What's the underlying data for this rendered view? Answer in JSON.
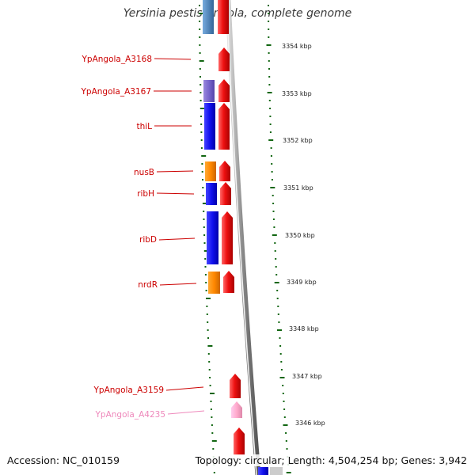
{
  "title": "Yersinia pestis Angola, complete genome",
  "accession": "Accession: NC_010159",
  "summary": "Topology: circular; Length: 4,504,254 bp; Genes: 3,942",
  "colors": {
    "red": "#ee1111",
    "blue": "#1111ee",
    "slate_blue": "#7766cc",
    "steel_blue": "#5588bb",
    "orange": "#ff8800",
    "pink": "#ffaacc",
    "label_red": "#cc0000",
    "label_pink": "#ee88bb",
    "tick_green": "#116611",
    "backbone_gray": "#999999"
  },
  "scale": {
    "unit": "kbp",
    "labels": [
      "3354 kbp",
      "3353 kbp",
      "3352 kbp",
      "3351 kbp",
      "3350 kbp",
      "3349 kbp",
      "3348 kbp",
      "3347 kbp",
      "3346 kbp"
    ]
  },
  "genes": [
    {
      "name": "YpAngola_A3168",
      "label_color": "#cc0000",
      "reverse_color": null
    },
    {
      "name": "YpAngola_A3167",
      "label_color": "#cc0000",
      "reverse_color": "#7766cc"
    },
    {
      "name": "thiL",
      "label_color": "#cc0000",
      "reverse_color": "#1111ee"
    },
    {
      "name": "nusB",
      "label_color": "#cc0000",
      "reverse_color": "#ff8800"
    },
    {
      "name": "ribH",
      "label_color": "#cc0000",
      "reverse_color": "#1111ee"
    },
    {
      "name": "ribD",
      "label_color": "#cc0000",
      "reverse_color": "#1111ee"
    },
    {
      "name": "nrdR",
      "label_color": "#cc0000",
      "reverse_color": "#ff8800"
    },
    {
      "name": "YpAngola_A3159",
      "label_color": "#cc0000",
      "reverse_color": null
    },
    {
      "name": "YpAngola_A4235",
      "label_color": "#ee88bb",
      "reverse_color": null
    }
  ]
}
